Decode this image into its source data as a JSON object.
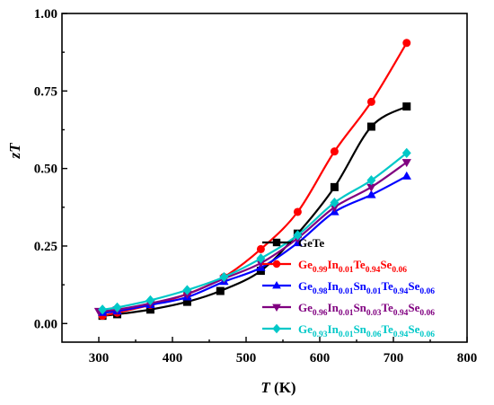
{
  "chart_data": {
    "type": "line",
    "xlabel_var": "T",
    "xlabel_unit": " (K)",
    "ylabel_var": "zT",
    "xlim": [
      250,
      800
    ],
    "ylim": [
      -0.06,
      1.0
    ],
    "xticks": [
      "300",
      "400",
      "500",
      "600",
      "700",
      "800"
    ],
    "yticks": [
      "0.00",
      "0.25",
      "0.50",
      "0.75",
      "1.00"
    ],
    "legend_position": "bottom-right",
    "series": [
      {
        "name_parts": [
          {
            "t": "GeTe",
            "sub": false
          }
        ],
        "color": "#000000",
        "marker": "square",
        "x": [
          305,
          325,
          370,
          420,
          465,
          520,
          570,
          620,
          670,
          718
        ],
        "y": [
          0.025,
          0.03,
          0.045,
          0.07,
          0.105,
          0.17,
          0.29,
          0.44,
          0.635,
          0.7
        ]
      },
      {
        "name_parts": [
          {
            "t": "Ge",
            "sub": false
          },
          {
            "t": "0.99",
            "sub": true
          },
          {
            "t": "In",
            "sub": false
          },
          {
            "t": "0.01",
            "sub": true
          },
          {
            "t": "Te",
            "sub": false
          },
          {
            "t": "0.94",
            "sub": true
          },
          {
            "t": "Se",
            "sub": false
          },
          {
            "t": "0.06",
            "sub": true
          }
        ],
        "color": "#ff0000",
        "marker": "circle",
        "x": [
          305,
          325,
          370,
          420,
          470,
          520,
          570,
          620,
          670,
          718
        ],
        "y": [
          0.025,
          0.035,
          0.06,
          0.095,
          0.15,
          0.24,
          0.36,
          0.555,
          0.715,
          0.905
        ]
      },
      {
        "name_parts": [
          {
            "t": "Ge",
            "sub": false
          },
          {
            "t": "0.98",
            "sub": true
          },
          {
            "t": "In",
            "sub": false
          },
          {
            "t": "0.01",
            "sub": true
          },
          {
            "t": "Sn",
            "sub": false
          },
          {
            "t": "0.01",
            "sub": true
          },
          {
            "t": "Te",
            "sub": false
          },
          {
            "t": "0.94",
            "sub": true
          },
          {
            "t": "Se",
            "sub": false
          },
          {
            "t": "0.06",
            "sub": true
          }
        ],
        "color": "#0000ff",
        "marker": "triangle-up",
        "x": [
          305,
          325,
          370,
          420,
          470,
          520,
          570,
          620,
          670,
          718
        ],
        "y": [
          0.035,
          0.04,
          0.06,
          0.085,
          0.135,
          0.18,
          0.26,
          0.36,
          0.415,
          0.475
        ]
      },
      {
        "name_parts": [
          {
            "t": "Ge",
            "sub": false
          },
          {
            "t": "0.96",
            "sub": true
          },
          {
            "t": "In",
            "sub": false
          },
          {
            "t": "0.01",
            "sub": true
          },
          {
            "t": "Sn",
            "sub": false
          },
          {
            "t": "0.03",
            "sub": true
          },
          {
            "t": "Te",
            "sub": false
          },
          {
            "t": "0.94",
            "sub": true
          },
          {
            "t": "Se",
            "sub": false
          },
          {
            "t": "0.06",
            "sub": true
          }
        ],
        "color": "#800080",
        "marker": "triangle-down",
        "x": [
          300,
          325,
          370,
          420,
          470,
          520,
          570,
          620,
          670,
          718
        ],
        "y": [
          0.04,
          0.045,
          0.065,
          0.095,
          0.145,
          0.195,
          0.275,
          0.375,
          0.44,
          0.52
        ]
      },
      {
        "name_parts": [
          {
            "t": "Ge",
            "sub": false
          },
          {
            "t": "0.93",
            "sub": true
          },
          {
            "t": "In",
            "sub": false
          },
          {
            "t": "0.01",
            "sub": true
          },
          {
            "t": "Sn",
            "sub": false
          },
          {
            "t": "0.06",
            "sub": true
          },
          {
            "t": "Te",
            "sub": false
          },
          {
            "t": "0.94",
            "sub": true
          },
          {
            "t": "Se",
            "sub": false
          },
          {
            "t": "0.06",
            "sub": true
          }
        ],
        "color": "#00c8c8",
        "marker": "diamond",
        "x": [
          305,
          325,
          370,
          420,
          470,
          520,
          570,
          620,
          670,
          718
        ],
        "y": [
          0.045,
          0.052,
          0.075,
          0.108,
          0.15,
          0.21,
          0.285,
          0.39,
          0.462,
          0.55
        ]
      }
    ]
  }
}
